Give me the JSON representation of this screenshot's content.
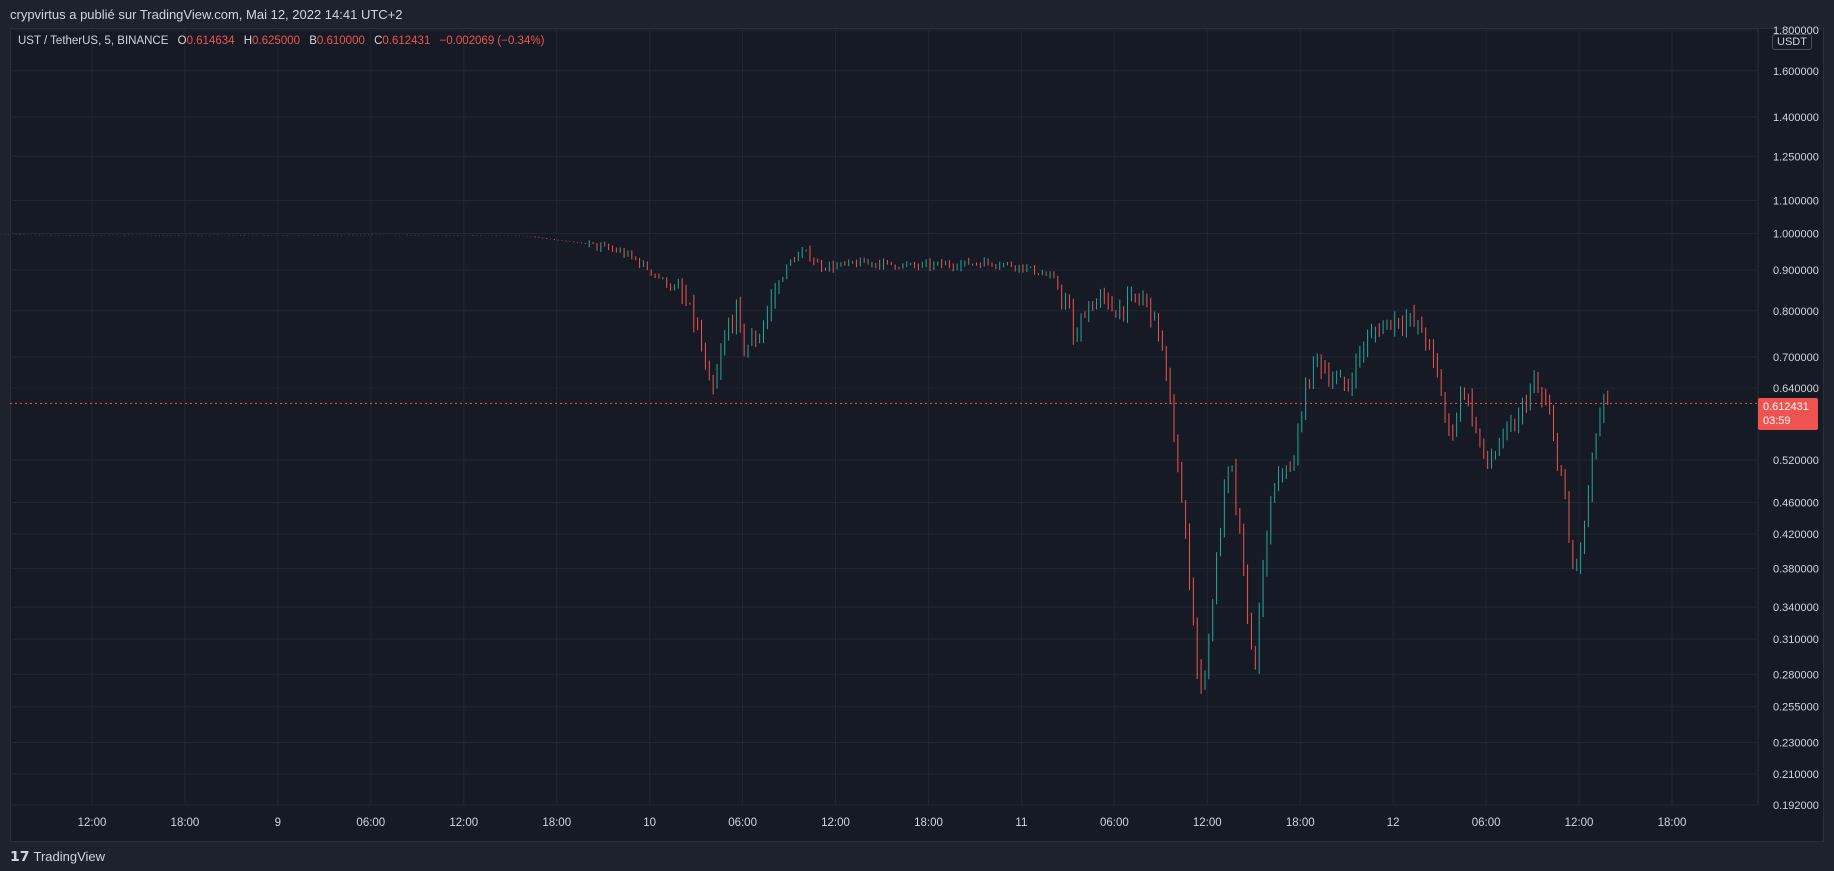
{
  "header": {
    "published_by": "crypvirtus a publié sur TradingView.com, Mai 12, 2022 14:41 UTC+2"
  },
  "legend": {
    "symbol": "UST / TetherUS, 5, BINANCE",
    "o_label": "O",
    "o_value": "0.614634",
    "h_label": "H",
    "h_value": "0.625000",
    "l_label": "B",
    "l_value": "0.610000",
    "c_label": "C",
    "c_value": "0.612431",
    "change": "−0.002069 (−0.34%)"
  },
  "price_axis": {
    "unit": "USDT"
  },
  "last_price": {
    "value": "0.612431",
    "countdown": "03:59"
  },
  "footer": {
    "logo_mark": "𝟭𝟳",
    "brand": "TradingView"
  },
  "colors": {
    "up": "#26a69a",
    "down": "#ef5350",
    "grid": "#232632",
    "background": "#161a25"
  },
  "chart_data": {
    "type": "line",
    "scale": "log",
    "symbol": "UST / TetherUS",
    "interval": "5",
    "exchange": "BINANCE",
    "ylim": [
      0.192,
      1.8
    ],
    "y_ticks": [
      "1.800000",
      "1.600000",
      "1.400000",
      "1.250000",
      "1.100000",
      "1.000000",
      "0.900000",
      "0.800000",
      "0.700000",
      "0.640000",
      "0.520000",
      "0.460000",
      "0.420000",
      "0.380000",
      "0.340000",
      "0.310000",
      "0.280000",
      "0.255000",
      "0.230000",
      "0.210000",
      "0.192000"
    ],
    "x_ticks": [
      "12:00",
      "18:00",
      "9",
      "06:00",
      "12:00",
      "18:00",
      "10",
      "06:00",
      "12:00",
      "18:00",
      "11",
      "06:00",
      "12:00",
      "18:00",
      "12",
      "06:00",
      "12:00",
      "18:00"
    ],
    "x_tick_hours": [
      12,
      18,
      24,
      30,
      36,
      42,
      48,
      54,
      60,
      66,
      72,
      78,
      84,
      90,
      96,
      102,
      108,
      114
    ],
    "grid": true,
    "last_price": 0.612431,
    "series": [
      {
        "x": [
          5.1,
          10,
          15,
          17,
          20,
          25,
          30,
          35,
          40,
          44,
          46,
          47,
          50,
          51,
          52,
          53,
          53.6,
          54,
          55,
          56,
          57,
          58,
          59,
          60,
          62,
          65,
          70,
          72,
          74,
          75,
          75.5,
          76,
          77,
          78,
          79,
          80,
          81,
          82,
          83,
          83.5,
          84,
          85,
          85.5,
          86,
          86.5,
          87,
          88,
          89,
          89.5,
          90,
          91,
          92,
          93,
          94,
          95,
          96,
          97,
          98,
          99,
          99.5,
          100,
          100.5,
          101,
          102,
          103,
          104,
          105,
          106,
          107,
          107.5,
          108,
          108.5,
          109,
          109.5,
          110
        ],
        "y": [
          0.998,
          0.995,
          0.996,
          0.995,
          0.996,
          0.995,
          0.996,
          0.995,
          0.993,
          0.97,
          0.95,
          0.93,
          0.84,
          0.77,
          0.62,
          0.76,
          0.8,
          0.72,
          0.74,
          0.84,
          0.92,
          0.95,
          0.91,
          0.91,
          0.92,
          0.91,
          0.92,
          0.91,
          0.88,
          0.81,
          0.72,
          0.8,
          0.83,
          0.8,
          0.82,
          0.83,
          0.74,
          0.53,
          0.35,
          0.26,
          0.3,
          0.46,
          0.52,
          0.43,
          0.35,
          0.28,
          0.45,
          0.52,
          0.49,
          0.6,
          0.7,
          0.66,
          0.64,
          0.72,
          0.76,
          0.78,
          0.78,
          0.75,
          0.65,
          0.56,
          0.58,
          0.65,
          0.6,
          0.51,
          0.55,
          0.58,
          0.65,
          0.6,
          0.48,
          0.38,
          0.39,
          0.45,
          0.55,
          0.61,
          0.612
        ]
      }
    ]
  }
}
